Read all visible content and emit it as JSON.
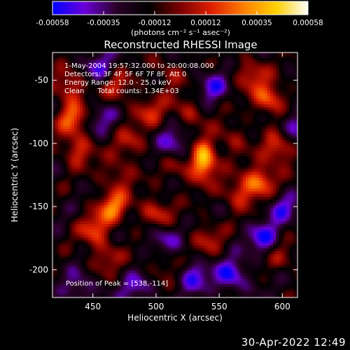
{
  "colorbar": {
    "ticks": [
      "-0.00058",
      "-0.00035",
      "-0.00012",
      "0.00012",
      "0.00035",
      "0.00058"
    ],
    "unit_label": "(photons cm⁻² s⁻¹ asec⁻²)",
    "colors": [
      "#0000ff",
      "#6a00d8",
      "#2a0028",
      "#000000",
      "#7a0000",
      "#e02000",
      "#ff8000",
      "#ffd000",
      "#ffffff"
    ]
  },
  "chart_data": {
    "type": "heatmap",
    "title": "Reconstructed RHESSI Image",
    "xlabel": "Heliocentric X (arcsec)",
    "ylabel": "Heliocentric Y (arcsec)",
    "xlim": [
      418,
      612
    ],
    "ylim": [
      -222,
      -28
    ],
    "xticks": [
      450,
      500,
      550,
      600
    ],
    "yticks": [
      -50,
      -100,
      -150,
      -200
    ],
    "value_range": [
      -0.00058,
      0.00058
    ],
    "peak": {
      "x": 538,
      "y": -114
    },
    "annotations": [
      "1-May-2004 19:57:32.000 to 20:00:08.000",
      "Detectors: 3F 4F 5F 6F 7F 8F, Att 0",
      "Energy Range: 12.0 - 25.0 keV",
      "Clean      Total counts: 1.34E+03"
    ],
    "peak_label": "Position of Peak = [538,-114]",
    "sources": [
      {
        "x": 538,
        "y": -113,
        "amp": 1.05
      },
      {
        "x": 466,
        "y": -150,
        "amp": 0.7
      },
      {
        "x": 451,
        "y": -168,
        "amp": 0.55
      },
      {
        "x": 500,
        "y": -155,
        "amp": 0.55
      },
      {
        "x": 582,
        "y": -130,
        "amp": 0.75
      },
      {
        "x": 565,
        "y": -140,
        "amp": 0.5
      },
      {
        "x": 434,
        "y": -80,
        "amp": 0.65
      },
      {
        "x": 438,
        "y": -105,
        "amp": 0.55
      },
      {
        "x": 432,
        "y": -55,
        "amp": 0.55
      },
      {
        "x": 590,
        "y": -65,
        "amp": 0.7
      },
      {
        "x": 597,
        "y": -105,
        "amp": 0.6
      },
      {
        "x": 575,
        "y": -45,
        "amp": 0.5
      },
      {
        "x": 470,
        "y": -55,
        "amp": 0.45
      },
      {
        "x": 495,
        "y": -75,
        "amp": 0.45
      },
      {
        "x": 520,
        "y": -120,
        "amp": 0.35
      },
      {
        "x": 480,
        "y": -100,
        "amp": 0.4
      },
      {
        "x": 540,
        "y": -175,
        "amp": 0.4
      },
      {
        "x": 460,
        "y": -190,
        "amp": 0.4
      },
      {
        "x": 505,
        "y": -195,
        "amp": 0.3
      },
      {
        "x": 525,
        "y": -75,
        "amp": 0.4
      },
      {
        "x": 560,
        "y": -95,
        "amp": 0.35
      },
      {
        "x": 600,
        "y": -190,
        "amp": 0.3
      },
      {
        "x": 470,
        "y": -125,
        "amp": 0.4
      },
      {
        "x": 510,
        "y": -45,
        "amp": 0.35
      },
      {
        "x": 545,
        "y": -55,
        "amp": -0.45
      },
      {
        "x": 515,
        "y": -100,
        "amp": -0.5
      },
      {
        "x": 585,
        "y": -175,
        "amp": -0.55
      },
      {
        "x": 560,
        "y": -205,
        "amp": -0.6
      },
      {
        "x": 505,
        "y": -175,
        "amp": -0.45
      },
      {
        "x": 440,
        "y": -215,
        "amp": -0.4
      },
      {
        "x": 455,
        "y": -40,
        "amp": -0.4
      },
      {
        "x": 600,
        "y": -150,
        "amp": -0.45
      },
      {
        "x": 455,
        "y": -80,
        "amp": -0.35
      },
      {
        "x": 530,
        "y": -205,
        "amp": -0.5
      },
      {
        "x": 610,
        "y": -85,
        "amp": -0.4
      },
      {
        "x": 485,
        "y": -215,
        "amp": -0.4
      }
    ]
  },
  "footer": {
    "timestamp": "30-Apr-2022 12:49"
  }
}
